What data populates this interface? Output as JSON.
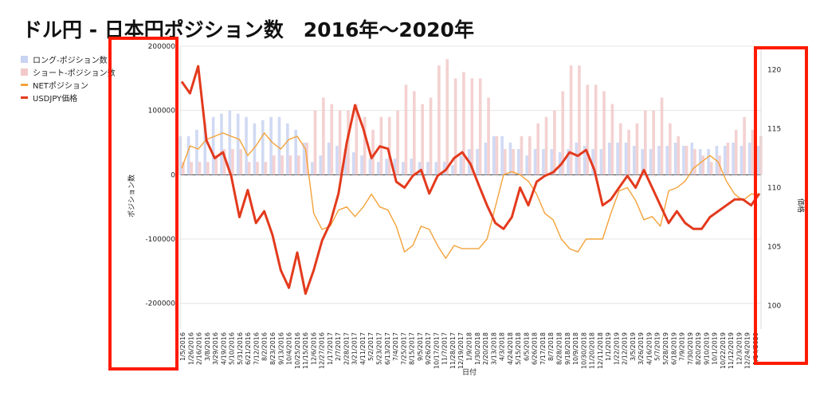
{
  "chart_data": {
    "type": "bar+line",
    "title": "ドル円 - 日本円ポジション数　2016年〜2020年",
    "xlabel": "日付",
    "ylabel_left": "ポジション数",
    "ylabel_right": "価格",
    "ylim_left": [
      -240000,
      200000
    ],
    "ylim_right": [
      98,
      122
    ],
    "left_ticks": [
      200000,
      100000,
      0,
      -100000,
      -200000
    ],
    "left_tick_labels": [
      "200000",
      "100000",
      "0",
      "-100000",
      "-200000"
    ],
    "right_ticks": [
      120,
      115,
      110,
      105,
      100
    ],
    "right_tick_labels": [
      "120",
      "115",
      "110",
      "105",
      "100"
    ],
    "x_tick_labels": [
      "1/5/2016",
      "1/26/2016",
      "2/16/2016",
      "3/8/2016",
      "3/29/2016",
      "4/19/2016",
      "5/10/2016",
      "5/31/2016",
      "6/21/2016",
      "7/12/2016",
      "8/2/2016",
      "8/23/2016",
      "9/13/2016",
      "10/4/2016",
      "10/25/2016",
      "11/15/2016",
      "12/6/2016",
      "12/27/2016",
      "1/17/2017",
      "2/7/2017",
      "2/28/2017",
      "3/21/2017",
      "4/11/2017",
      "5/2/2017",
      "5/23/2017",
      "6/13/2017",
      "7/4/2017",
      "7/25/2017",
      "8/15/2017",
      "9/5/2017",
      "9/26/2017",
      "10/17/2017",
      "11/7/2017",
      "11/28/2017",
      "12/19/2017",
      "1/9/2018",
      "1/30/2018",
      "2/20/2018",
      "3/13/2018",
      "4/3/2018",
      "4/24/2018",
      "5/15/2018",
      "6/5/2018",
      "6/26/2018",
      "7/17/2018",
      "8/7/2018",
      "8/28/2018",
      "9/18/2018",
      "10/9/2018",
      "10/30/2018",
      "11/20/2018",
      "12/11/2018",
      "1/1/2019",
      "1/22/2019",
      "2/12/2019",
      "3/5/2019",
      "3/26/2019",
      "4/16/2019",
      "5/7/2019",
      "5/28/2019",
      "6/18/2019",
      "7/9/2019",
      "7/30/2019",
      "8/20/2019",
      "9/10/2019",
      "10/1/2019",
      "10/22/2019",
      "11/12/2019",
      "12/3/2019",
      "12/24/2019",
      "1/14/2020"
    ],
    "legend": [
      {
        "name": "ロング-ポジション数",
        "type": "bar",
        "color": "#c9d3f2"
      },
      {
        "name": "ショート-ポジション数",
        "type": "bar",
        "color": "#f2c9c9"
      },
      {
        "name": "NETポジション",
        "type": "line",
        "color": "#f4a23a"
      },
      {
        "name": "USDJPY価格",
        "type": "line",
        "color": "#e33a1d"
      }
    ],
    "series_long": {
      "name": "ロング-ポジション数",
      "values": [
        60000,
        60000,
        70000,
        80000,
        90000,
        95000,
        100000,
        95000,
        90000,
        80000,
        85000,
        90000,
        90000,
        80000,
        70000,
        50000,
        20000,
        30000,
        50000,
        45000,
        40000,
        35000,
        30000,
        25000,
        20000,
        25000,
        25000,
        20000,
        25000,
        20000,
        20000,
        20000,
        20000,
        15000,
        30000,
        40000,
        40000,
        50000,
        60000,
        60000,
        50000,
        40000,
        30000,
        40000,
        40000,
        40000,
        35000,
        40000,
        50000,
        45000,
        40000,
        40000,
        50000,
        50000,
        50000,
        45000,
        40000,
        40000,
        45000,
        45000,
        50000,
        45000,
        50000,
        40000,
        40000,
        45000,
        45000,
        50000,
        45000,
        50000,
        45000
      ]
    },
    "series_short": {
      "name": "ショート-ポジション数",
      "values": [
        20000,
        20000,
        20000,
        20000,
        30000,
        40000,
        40000,
        40000,
        20000,
        20000,
        20000,
        30000,
        30000,
        30000,
        30000,
        50000,
        100000,
        120000,
        110000,
        100000,
        100000,
        110000,
        90000,
        70000,
        90000,
        90000,
        100000,
        140000,
        130000,
        110000,
        120000,
        170000,
        180000,
        150000,
        160000,
        150000,
        150000,
        120000,
        60000,
        40000,
        40000,
        60000,
        60000,
        80000,
        90000,
        100000,
        130000,
        170000,
        170000,
        140000,
        140000,
        130000,
        110000,
        80000,
        70000,
        80000,
        100000,
        100000,
        120000,
        80000,
        60000,
        45000,
        40000,
        30000,
        20000,
        30000,
        50000,
        70000,
        90000,
        70000,
        60000
      ]
    },
    "series_net": {
      "name": "NETポジション",
      "values": [
        10000,
        45000,
        40000,
        55000,
        60000,
        65000,
        60000,
        55000,
        30000,
        45000,
        65000,
        50000,
        40000,
        55000,
        60000,
        40000,
        -60000,
        -85000,
        -80000,
        -55000,
        -50000,
        -65000,
        -50000,
        -30000,
        -50000,
        -55000,
        -80000,
        -120000,
        -110000,
        -80000,
        -85000,
        -110000,
        -130000,
        -110000,
        -115000,
        -115000,
        -115000,
        -100000,
        -50000,
        0,
        5000,
        0,
        -10000,
        -30000,
        -60000,
        -70000,
        -100000,
        -115000,
        -120000,
        -100000,
        -100000,
        -100000,
        -60000,
        -25000,
        -20000,
        -40000,
        -70000,
        -65000,
        -80000,
        -25000,
        -20000,
        -10000,
        10000,
        20000,
        30000,
        20000,
        -10000,
        -30000,
        -40000,
        -30000,
        -30000
      ]
    },
    "series_price": {
      "name": "USDJPY価格",
      "values": [
        119,
        118,
        120.3,
        114,
        112.5,
        113,
        111,
        107.5,
        109.8,
        107,
        108,
        106,
        103,
        101.5,
        104.5,
        101,
        103,
        105.5,
        107,
        109.5,
        113.8,
        117,
        115,
        112.5,
        113.5,
        113.3,
        110.5,
        110,
        111,
        111.5,
        109.5,
        111,
        111.5,
        112.5,
        113,
        112,
        110.2,
        108.5,
        107,
        106.5,
        107.5,
        110,
        108.5,
        110.5,
        111,
        111.3,
        112,
        113,
        112.7,
        113.2,
        111.5,
        108.5,
        109,
        110,
        111,
        110,
        111.5,
        110,
        108.5,
        107,
        108,
        107,
        106.5,
        106.5,
        107.5,
        108,
        108.5,
        109,
        109,
        108.5,
        109.5
      ]
    }
  }
}
